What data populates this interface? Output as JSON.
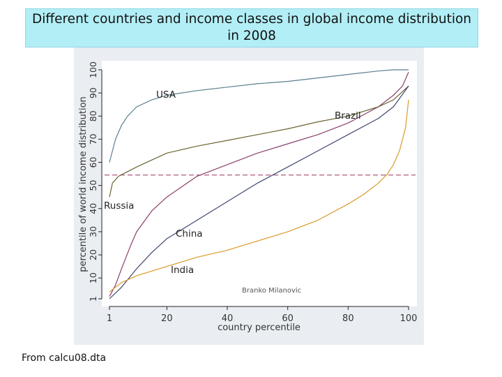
{
  "title": "Different countries and income classes in global income distribution in 2008",
  "source_note": "From calcu08.dta",
  "colors": {
    "title_bg": "#b2eef6",
    "panel_bg": "#eaeef2",
    "usa": "#5a7f90",
    "brazil": "#8a3f6a",
    "russia": "#6a6330",
    "china": "#3f4670",
    "india": "#d99a2a",
    "median_line": "#9a3060"
  },
  "chart_data": {
    "type": "line",
    "title": "Different countries and income classes in global income distribution in 2008",
    "xlabel": "country percentile",
    "ylabel": "percentile of world income distribution",
    "xlim": [
      1,
      100
    ],
    "ylim": [
      1,
      100
    ],
    "xticks": [
      1,
      20,
      40,
      60,
      80,
      100
    ],
    "yticks": [
      1,
      10,
      20,
      30,
      40,
      50,
      60,
      70,
      80,
      90,
      100
    ],
    "reference_line": {
      "y": 54.5,
      "style": "dashed"
    },
    "annotations": [
      "Branko Milanovic"
    ],
    "series": [
      {
        "name": "USA",
        "color": "#5a7f90",
        "x": [
          1,
          3,
          5,
          7,
          10,
          15,
          20,
          30,
          40,
          50,
          60,
          70,
          80,
          90,
          95,
          100
        ],
        "y": [
          60,
          70,
          76,
          80,
          84,
          87,
          89,
          91,
          92.5,
          94,
          95,
          96.5,
          98,
          99.5,
          100,
          100
        ]
      },
      {
        "name": "Brazil",
        "color": "#8a3f6a",
        "x": [
          1,
          3,
          5,
          8,
          10,
          15,
          20,
          30,
          40,
          50,
          60,
          70,
          80,
          90,
          95,
          98,
          100
        ],
        "y": [
          2,
          7,
          14,
          24,
          30,
          39,
          45,
          54,
          59,
          64,
          68,
          72,
          77,
          84,
          89,
          93,
          99
        ]
      },
      {
        "name": "Russia",
        "color": "#6a6330",
        "x": [
          1,
          2,
          4,
          7,
          10,
          15,
          20,
          30,
          40,
          50,
          60,
          70,
          80,
          90,
          95,
          100
        ],
        "y": [
          45,
          51,
          54,
          56,
          58,
          61,
          64,
          67,
          69.5,
          72,
          74.5,
          77.5,
          80,
          84,
          87,
          93
        ]
      },
      {
        "name": "China",
        "color": "#3f4670",
        "x": [
          1,
          5,
          10,
          15,
          20,
          30,
          40,
          50,
          60,
          70,
          80,
          90,
          95,
          100
        ],
        "y": [
          1,
          6,
          14,
          21,
          27,
          35,
          43,
          51,
          58,
          65,
          72,
          79,
          84,
          93
        ]
      },
      {
        "name": "India",
        "color": "#d99a2a",
        "x": [
          1,
          5,
          10,
          20,
          30,
          40,
          50,
          60,
          70,
          80,
          85,
          90,
          93,
          95,
          97,
          99,
          100
        ],
        "y": [
          4,
          8,
          11,
          15,
          19,
          22,
          26,
          30,
          35,
          42,
          46,
          51,
          55,
          59,
          65,
          75,
          87
        ]
      }
    ],
    "series_labels": [
      "USA",
      "Brazil",
      "Russia",
      "China",
      "India"
    ]
  }
}
